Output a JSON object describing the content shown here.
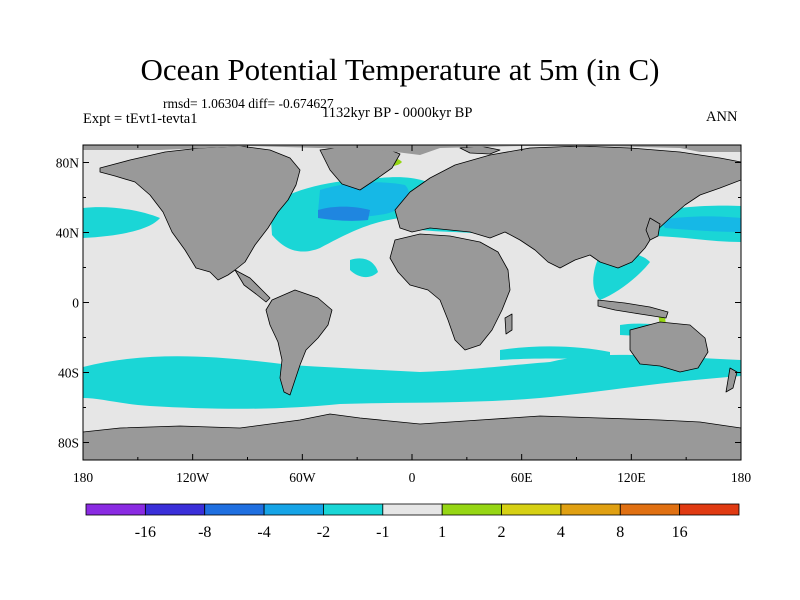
{
  "title": "Ocean Potential Temperature at 5m (in C)",
  "stats": "rmsd= 1.06304  diff= -0.674627",
  "experiment": "Expt = tEvt1-tevta1",
  "period": "1132kyr BP - 0000kyr BP",
  "season": "ANN",
  "colors": {
    "ocean_background": "#e6e6e6",
    "land": "#999999",
    "anomaly_minus_1_to_minus_2": "#1ad6d6",
    "anomaly_minus_2_to_minus_4": "#16b8e6",
    "anomaly_minus_4_to_minus_8": "#1f86e0",
    "anomaly_plus_1_to_2": "#96d614"
  },
  "map": {
    "projection": "cylindrical-equidistant",
    "lon_range": [
      -180,
      180
    ],
    "lat_range": [
      -90,
      90
    ],
    "x_ticks": [
      {
        "lon": -180,
        "label": "180"
      },
      {
        "lon": -120,
        "label": "120W"
      },
      {
        "lon": -60,
        "label": "60W"
      },
      {
        "lon": 0,
        "label": "0"
      },
      {
        "lon": 60,
        "label": "60E"
      },
      {
        "lon": 120,
        "label": "120E"
      },
      {
        "lon": 180,
        "label": "180"
      }
    ],
    "y_ticks": [
      {
        "lat": 80,
        "label": "80N"
      },
      {
        "lat": 40,
        "label": "40N"
      },
      {
        "lat": 0,
        "label": "0"
      },
      {
        "lat": -40,
        "label": "40S"
      },
      {
        "lat": -80,
        "label": "80S"
      }
    ]
  },
  "colorbar": {
    "colors": [
      "#8a2be2",
      "#3a2fd9",
      "#1f6fe0",
      "#16a4e6",
      "#1ad6d6",
      "#e6e6e6",
      "#96d614",
      "#d6d014",
      "#e0a012",
      "#e07012",
      "#e03a12"
    ],
    "labels": [
      "-16",
      "-8",
      "-4",
      "-2",
      "-1",
      "1",
      "2",
      "4",
      "8",
      "16"
    ]
  }
}
